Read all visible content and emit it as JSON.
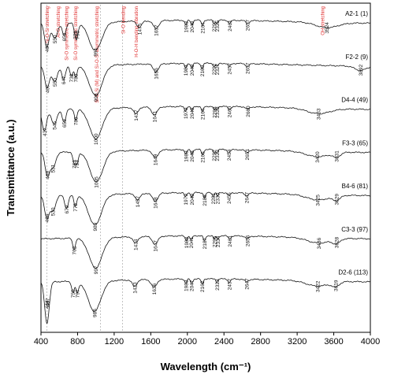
{
  "chart_data": {
    "type": "line",
    "xlabel": "Wavelength (cm⁻¹)",
    "ylabel": "Transmittance (a.u.)",
    "xlim": [
      400,
      4000
    ],
    "xticks": [
      "400",
      "800",
      "1200",
      "1600",
      "2000",
      "2400",
      "2800",
      "3200",
      "3600",
      "4000"
    ],
    "guides": [
      465,
      1050,
      1290
    ],
    "annotations": [
      {
        "x": 470,
        "text": "Si-O-Si stretching"
      },
      {
        "x": 590,
        "text": "Al-O stretching"
      },
      {
        "x": 680,
        "text": "Si-O symmetric stretching"
      },
      {
        "x": 780,
        "text": "Si-O symmetric stretching"
      },
      {
        "x": 1010,
        "text": "Si-O-Si (M) and Si-O-Si asymmetric stretching"
      },
      {
        "x": 1300,
        "text": "Si-O bending"
      },
      {
        "x": 1440,
        "text": "H-O-H bending vibration"
      },
      {
        "x": 3480,
        "text": "OH stretching"
      }
    ],
    "series": [
      {
        "name": "A2-1 (1)",
        "baseline": 1.0,
        "peaks": [
          {
            "x": 464,
            "d": 0.55,
            "w": 25
          },
          {
            "x": 550,
            "d": 0.35,
            "w": 30
          },
          {
            "x": 653,
            "d": 0.3,
            "w": 20
          },
          {
            "x": 775,
            "d": 0.25,
            "w": 15
          },
          {
            "x": 796,
            "d": 0.25,
            "w": 15
          },
          {
            "x": 994,
            "d": 0.65,
            "w": 70
          },
          {
            "x": 1475,
            "d": 0.15,
            "w": 25
          },
          {
            "x": 1657,
            "d": 0.18,
            "w": 30
          },
          {
            "x": 1983,
            "d": 0.1,
            "w": 12
          },
          {
            "x": 2049,
            "d": 0.1,
            "w": 12
          },
          {
            "x": 2164,
            "d": 0.12,
            "w": 12
          },
          {
            "x": 2292,
            "d": 0.08,
            "w": 10
          },
          {
            "x": 2325,
            "d": 0.08,
            "w": 10
          },
          {
            "x": 2461,
            "d": 0.07,
            "w": 15
          },
          {
            "x": 2657,
            "d": 0.06,
            "w": 20
          },
          {
            "x": 3524,
            "d": 0.12,
            "w": 120
          }
        ],
        "labels": [
          "464",
          "550",
          "653",
          "775",
          "796",
          "994",
          "1475",
          "1657",
          "1983",
          "2049",
          "2164",
          "2292",
          "2325",
          "2461",
          "2657",
          "3524"
        ]
      },
      {
        "name": "F2-2 (9)",
        "baseline": 0.85,
        "peaks": [
          {
            "x": 467,
            "d": 0.5,
            "w": 25
          },
          {
            "x": 550,
            "d": 0.35,
            "w": 30
          },
          {
            "x": 647,
            "d": 0.3,
            "w": 20
          },
          {
            "x": 732,
            "d": 0.25,
            "w": 15
          },
          {
            "x": 780,
            "d": 0.25,
            "w": 15
          },
          {
            "x": 998,
            "d": 0.7,
            "w": 70
          },
          {
            "x": 1656,
            "d": 0.18,
            "w": 30
          },
          {
            "x": 1981,
            "d": 0.1,
            "w": 12
          },
          {
            "x": 2049,
            "d": 0.1,
            "w": 12
          },
          {
            "x": 2160,
            "d": 0.12,
            "w": 12
          },
          {
            "x": 2292,
            "d": 0.08,
            "w": 10
          },
          {
            "x": 2327,
            "d": 0.08,
            "w": 10
          },
          {
            "x": 2457,
            "d": 0.07,
            "w": 15
          },
          {
            "x": 2657,
            "d": 0.06,
            "w": 20
          },
          {
            "x": 3892,
            "d": 0.1,
            "w": 60
          }
        ],
        "labels": [
          "467",
          "550",
          "647",
          "732",
          "780",
          "998",
          "1656",
          "1981",
          "2049",
          "2160",
          "2292",
          "2327",
          "2457",
          "2657",
          "3892"
        ]
      },
      {
        "name": "D4-4 (49)",
        "baseline": 0.7,
        "peaks": [
          {
            "x": 437,
            "d": 0.5,
            "w": 25
          },
          {
            "x": 545,
            "d": 0.35,
            "w": 30
          },
          {
            "x": 653,
            "d": 0.3,
            "w": 20
          },
          {
            "x": 780,
            "d": 0.25,
            "w": 15
          },
          {
            "x": 1000,
            "d": 0.7,
            "w": 70
          },
          {
            "x": 1437,
            "d": 0.15,
            "w": 25
          },
          {
            "x": 1641,
            "d": 0.18,
            "w": 30
          },
          {
            "x": 1979,
            "d": 0.1,
            "w": 12
          },
          {
            "x": 2049,
            "d": 0.1,
            "w": 12
          },
          {
            "x": 2164,
            "d": 0.12,
            "w": 12
          },
          {
            "x": 2293,
            "d": 0.08,
            "w": 10
          },
          {
            "x": 2323,
            "d": 0.08,
            "w": 10
          },
          {
            "x": 2460,
            "d": 0.07,
            "w": 15
          },
          {
            "x": 2660,
            "d": 0.06,
            "w": 20
          },
          {
            "x": 3433,
            "d": 0.12,
            "w": 120
          }
        ],
        "labels": [
          "437",
          "545",
          "653",
          "780",
          "1000",
          "1437",
          "1641",
          "1979",
          "2049",
          "2164",
          "2293",
          "2323",
          "2460",
          "2660",
          "3433"
        ]
      },
      {
        "name": "F3-3 (65)",
        "baseline": 0.55,
        "peaks": [
          {
            "x": 469,
            "d": 0.5,
            "w": 25
          },
          {
            "x": 531,
            "d": 0.35,
            "w": 30
          },
          {
            "x": 763,
            "d": 0.25,
            "w": 15
          },
          {
            "x": 793,
            "d": 0.25,
            "w": 15
          },
          {
            "x": 1005,
            "d": 0.7,
            "w": 70
          },
          {
            "x": 1649,
            "d": 0.18,
            "w": 30
          },
          {
            "x": 1983,
            "d": 0.1,
            "w": 12
          },
          {
            "x": 2048,
            "d": 0.1,
            "w": 12
          },
          {
            "x": 2166,
            "d": 0.12,
            "w": 12
          },
          {
            "x": 2292,
            "d": 0.08,
            "w": 10
          },
          {
            "x": 2323,
            "d": 0.08,
            "w": 10
          },
          {
            "x": 2454,
            "d": 0.07,
            "w": 15
          },
          {
            "x": 2651,
            "d": 0.06,
            "w": 20
          },
          {
            "x": 3420,
            "d": 0.12,
            "w": 120
          },
          {
            "x": 3631,
            "d": 0.1,
            "w": 40
          }
        ],
        "labels": [
          "469",
          "531",
          "763",
          "793",
          "1005",
          "1649",
          "1983",
          "2048",
          "2166",
          "2292",
          "2323",
          "2454",
          "2651",
          "3420",
          "3631"
        ]
      },
      {
        "name": "B4-6 (81)",
        "baseline": 0.4,
        "peaks": [
          {
            "x": 464,
            "d": 0.5,
            "w": 25
          },
          {
            "x": 530,
            "d": 0.35,
            "w": 30
          },
          {
            "x": 679,
            "d": 0.3,
            "w": 20
          },
          {
            "x": 775,
            "d": 0.25,
            "w": 15
          },
          {
            "x": 989,
            "d": 0.7,
            "w": 70
          },
          {
            "x": 1457,
            "d": 0.15,
            "w": 25
          },
          {
            "x": 1648,
            "d": 0.18,
            "w": 30
          },
          {
            "x": 1979,
            "d": 0.1,
            "w": 12
          },
          {
            "x": 2049,
            "d": 0.1,
            "w": 12
          },
          {
            "x": 2188,
            "d": 0.12,
            "w": 12
          },
          {
            "x": 2281,
            "d": 0.08,
            "w": 10
          },
          {
            "x": 2330,
            "d": 0.08,
            "w": 10
          },
          {
            "x": 2455,
            "d": 0.07,
            "w": 15
          },
          {
            "x": 2647,
            "d": 0.06,
            "w": 20
          },
          {
            "x": 3425,
            "d": 0.12,
            "w": 120
          },
          {
            "x": 3629,
            "d": 0.1,
            "w": 40
          }
        ],
        "labels": [
          "464",
          "530",
          "679",
          "775",
          "989",
          "1457",
          "1648",
          "1979",
          "2049",
          "2188",
          "2281",
          "2330",
          "2455",
          "2647",
          "3425",
          "3629"
        ]
      },
      {
        "name": "C3-3 (97)",
        "baseline": 0.25,
        "peaks": [
          {
            "x": 762,
            "d": 0.25,
            "w": 15
          },
          {
            "x": 997,
            "d": 0.7,
            "w": 70
          },
          {
            "x": 1434,
            "d": 0.15,
            "w": 25
          },
          {
            "x": 1647,
            "d": 0.18,
            "w": 30
          },
          {
            "x": 1988,
            "d": 0.1,
            "w": 12
          },
          {
            "x": 2041,
            "d": 0.1,
            "w": 12
          },
          {
            "x": 2187,
            "d": 0.12,
            "w": 12
          },
          {
            "x": 2295,
            "d": 0.08,
            "w": 10
          },
          {
            "x": 2334,
            "d": 0.08,
            "w": 10
          },
          {
            "x": 2461,
            "d": 0.07,
            "w": 15
          },
          {
            "x": 2656,
            "d": 0.06,
            "w": 20
          },
          {
            "x": 3436,
            "d": 0.12,
            "w": 120
          },
          {
            "x": 3628,
            "d": 0.1,
            "w": 40
          }
        ],
        "labels": [
          "762",
          "997",
          "1434",
          "1647",
          "1988",
          "2041",
          "2187",
          "2295",
          "2334",
          "2461",
          "2656",
          "3436",
          "3628"
        ]
      },
      {
        "name": "D2-6 (113)",
        "baseline": 0.1,
        "peaks": [
          {
            "x": 464,
            "d": 0.5,
            "w": 25
          },
          {
            "x": 467,
            "d": 0.45,
            "w": 25
          },
          {
            "x": 750,
            "d": 0.25,
            "w": 15
          },
          {
            "x": 797,
            "d": 0.25,
            "w": 15
          },
          {
            "x": 985,
            "d": 0.7,
            "w": 70
          },
          {
            "x": 1423,
            "d": 0.15,
            "w": 25
          },
          {
            "x": 1636,
            "d": 0.18,
            "w": 30
          },
          {
            "x": 1983,
            "d": 0.1,
            "w": 12
          },
          {
            "x": 2047,
            "d": 0.1,
            "w": 12
          },
          {
            "x": 2162,
            "d": 0.12,
            "w": 12
          },
          {
            "x": 2323,
            "d": 0.08,
            "w": 10
          },
          {
            "x": 2457,
            "d": 0.07,
            "w": 15
          },
          {
            "x": 2647,
            "d": 0.06,
            "w": 20
          },
          {
            "x": 3422,
            "d": 0.12,
            "w": 120
          },
          {
            "x": 3619,
            "d": 0.1,
            "w": 40
          }
        ],
        "labels": [
          "464",
          "467",
          "750",
          "797",
          "985",
          "1423",
          "1636",
          "1983",
          "2047",
          "2162",
          "2323",
          "2457",
          "2647",
          "3422",
          "3619"
        ]
      }
    ]
  }
}
